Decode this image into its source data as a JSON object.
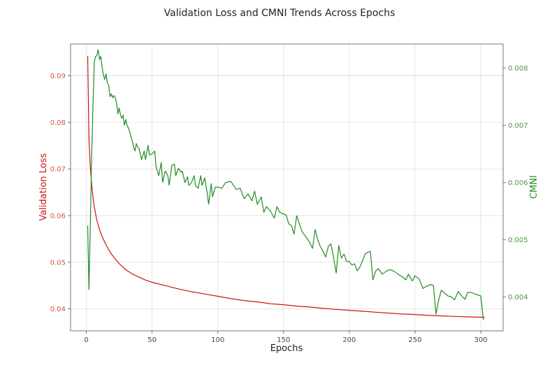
{
  "colors": {
    "loss": "#cc1111",
    "loss_ticks": "#d9534f",
    "cmni": "#228b22",
    "cmni_ticks": "#4a9a3c",
    "grid": "#dddddd",
    "axis": "#555555"
  },
  "chart_data": {
    "type": "line",
    "title": "Validation Loss and CMNI Trends Across Epochs",
    "xlabel": "Epochs",
    "ylabel_left": "Validation Loss",
    "ylabel_right": "CMNI",
    "xlim": [
      -12,
      317
    ],
    "ylim_left": [
      0.0353,
      0.0968
    ],
    "ylim_right": [
      0.00341,
      0.00842
    ],
    "x_ticks": [
      0,
      50,
      100,
      150,
      200,
      250,
      300
    ],
    "y_ticks_left": [
      0.04,
      0.05,
      0.06,
      0.07,
      0.08,
      0.09
    ],
    "y_ticks_right": [
      0.004,
      0.005,
      0.006,
      0.007,
      0.008
    ],
    "x_tick_labels": [
      "0",
      "50",
      "100",
      "150",
      "200",
      "250",
      "300"
    ],
    "y_tick_labels_left": [
      "0.04",
      "0.05",
      "0.06",
      "0.07",
      "0.08",
      "0.09"
    ],
    "y_tick_labels_right": [
      "0.004",
      "0.005",
      "0.006",
      "0.007",
      "0.008"
    ],
    "grid": true,
    "series": [
      {
        "name": "Validation Loss",
        "axis": "left",
        "points": [
          [
            1,
            0.0942
          ],
          [
            2,
            0.0765
          ],
          [
            3,
            0.0705
          ],
          [
            4,
            0.0668
          ],
          [
            5,
            0.064
          ],
          [
            6,
            0.0619
          ],
          [
            8,
            0.059
          ],
          [
            10,
            0.057
          ],
          [
            12,
            0.0555
          ],
          [
            15,
            0.0537
          ],
          [
            18,
            0.0522
          ],
          [
            20,
            0.0514
          ],
          [
            25,
            0.0497
          ],
          [
            30,
            0.0484
          ],
          [
            35,
            0.0475
          ],
          [
            40,
            0.0468
          ],
          [
            45,
            0.0462
          ],
          [
            50,
            0.0457
          ],
          [
            60,
            0.045
          ],
          [
            70,
            0.0443
          ],
          [
            80,
            0.0437
          ],
          [
            90,
            0.0432
          ],
          [
            100,
            0.0427
          ],
          [
            110,
            0.0422
          ],
          [
            120,
            0.0418
          ],
          [
            130,
            0.0415
          ],
          [
            140,
            0.0411
          ],
          [
            150,
            0.0409
          ],
          [
            160,
            0.0406
          ],
          [
            170,
            0.0404
          ],
          [
            180,
            0.0401
          ],
          [
            190,
            0.0399
          ],
          [
            200,
            0.0397
          ],
          [
            210,
            0.0395
          ],
          [
            220,
            0.0393
          ],
          [
            230,
            0.0391
          ],
          [
            240,
            0.0389
          ],
          [
            250,
            0.0388
          ],
          [
            260,
            0.0386
          ],
          [
            270,
            0.0385
          ],
          [
            280,
            0.0384
          ],
          [
            290,
            0.0383
          ],
          [
            303,
            0.0382
          ]
        ]
      },
      {
        "name": "CMNI",
        "axis": "right",
        "points": [
          [
            1,
            0.00525
          ],
          [
            2,
            0.00413
          ],
          [
            3,
            0.00521
          ],
          [
            4,
            0.00642
          ],
          [
            5,
            0.0073
          ],
          [
            6,
            0.0081
          ],
          [
            7,
            0.0082
          ],
          [
            8,
            0.00822
          ],
          [
            9,
            0.00832
          ],
          [
            10,
            0.00815
          ],
          [
            11,
            0.0082
          ],
          [
            12,
            0.008
          ],
          [
            13,
            0.00788
          ],
          [
            14,
            0.0078
          ],
          [
            15,
            0.0079
          ],
          [
            16,
            0.00773
          ],
          [
            17,
            0.0077
          ],
          [
            18,
            0.0075
          ],
          [
            19,
            0.00755
          ],
          [
            20,
            0.00748
          ],
          [
            21,
            0.00752
          ],
          [
            22,
            0.00748
          ],
          [
            23,
            0.00738
          ],
          [
            24,
            0.0072
          ],
          [
            25,
            0.0073
          ],
          [
            26,
            0.00718
          ],
          [
            27,
            0.00712
          ],
          [
            28,
            0.00718
          ],
          [
            29,
            0.007
          ],
          [
            30,
            0.0071
          ],
          [
            31,
            0.007
          ],
          [
            32,
            0.00695
          ],
          [
            33,
            0.00688
          ],
          [
            35,
            0.00672
          ],
          [
            36,
            0.00662
          ],
          [
            37,
            0.00655
          ],
          [
            38,
            0.00668
          ],
          [
            39,
            0.00662
          ],
          [
            40,
            0.0066
          ],
          [
            42,
            0.0064
          ],
          [
            44,
            0.00655
          ],
          [
            45,
            0.0064
          ],
          [
            47,
            0.00665
          ],
          [
            48,
            0.00648
          ],
          [
            50,
            0.0065
          ],
          [
            52,
            0.00655
          ],
          [
            53,
            0.00628
          ],
          [
            55,
            0.00612
          ],
          [
            57,
            0.00635
          ],
          [
            58,
            0.006
          ],
          [
            60,
            0.0062
          ],
          [
            62,
            0.00612
          ],
          [
            63,
            0.00595
          ],
          [
            65,
            0.0063
          ],
          [
            67,
            0.00632
          ],
          [
            68,
            0.00612
          ],
          [
            70,
            0.00625
          ],
          [
            72,
            0.00618
          ],
          [
            73,
            0.0062
          ],
          [
            75,
            0.006
          ],
          [
            77,
            0.0061
          ],
          [
            78,
            0.00595
          ],
          [
            80,
            0.006
          ],
          [
            82,
            0.00612
          ],
          [
            83,
            0.00595
          ],
          [
            85,
            0.0059
          ],
          [
            87,
            0.00612
          ],
          [
            88,
            0.00595
          ],
          [
            90,
            0.00608
          ],
          [
            92,
            0.0058
          ],
          [
            93,
            0.00562
          ],
          [
            95,
            0.00598
          ],
          [
            96,
            0.00575
          ],
          [
            98,
            0.00592
          ],
          [
            100,
            0.00592
          ],
          [
            103,
            0.0059
          ],
          [
            106,
            0.006
          ],
          [
            110,
            0.00602
          ],
          [
            114,
            0.00588
          ],
          [
            117,
            0.0059
          ],
          [
            120,
            0.00572
          ],
          [
            123,
            0.0058
          ],
          [
            126,
            0.00568
          ],
          [
            128,
            0.00585
          ],
          [
            130,
            0.00562
          ],
          [
            133,
            0.00575
          ],
          [
            135,
            0.00548
          ],
          [
            137,
            0.00558
          ],
          [
            140,
            0.0055
          ],
          [
            143,
            0.00538
          ],
          [
            145,
            0.00558
          ],
          [
            147,
            0.00548
          ],
          [
            150,
            0.00545
          ],
          [
            152,
            0.00543
          ],
          [
            154,
            0.00528
          ],
          [
            156,
            0.00525
          ],
          [
            158,
            0.0051
          ],
          [
            160,
            0.00542
          ],
          [
            162,
            0.00528
          ],
          [
            164,
            0.00515
          ],
          [
            166,
            0.00508
          ],
          [
            168,
            0.00502
          ],
          [
            170,
            0.00495
          ],
          [
            172,
            0.00485
          ],
          [
            174,
            0.00518
          ],
          [
            176,
            0.005
          ],
          [
            178,
            0.00488
          ],
          [
            180,
            0.0048
          ],
          [
            182,
            0.0047
          ],
          [
            184,
            0.00488
          ],
          [
            186,
            0.00493
          ],
          [
            188,
            0.0047
          ],
          [
            190,
            0.00442
          ],
          [
            192,
            0.0049
          ],
          [
            194,
            0.00468
          ],
          [
            196,
            0.00475
          ],
          [
            198,
            0.00462
          ],
          [
            200,
            0.00462
          ],
          [
            202,
            0.00456
          ],
          [
            204,
            0.00458
          ],
          [
            206,
            0.00446
          ],
          [
            208,
            0.00452
          ],
          [
            210,
            0.00463
          ],
          [
            212,
            0.00475
          ],
          [
            214,
            0.00478
          ],
          [
            216,
            0.0048
          ],
          [
            218,
            0.0043
          ],
          [
            220,
            0.00445
          ],
          [
            222,
            0.0045
          ],
          [
            225,
            0.0044
          ],
          [
            228,
            0.00445
          ],
          [
            231,
            0.00448
          ],
          [
            234,
            0.00445
          ],
          [
            237,
            0.0044
          ],
          [
            240,
            0.00436
          ],
          [
            243,
            0.0043
          ],
          [
            245,
            0.0044
          ],
          [
            248,
            0.00428
          ],
          [
            250,
            0.00437
          ],
          [
            253,
            0.00432
          ],
          [
            256,
            0.00415
          ],
          [
            258,
            0.00418
          ],
          [
            260,
            0.0042
          ],
          [
            262,
            0.00422
          ],
          [
            264,
            0.0042
          ],
          [
            266,
            0.0037
          ],
          [
            268,
            0.00395
          ],
          [
            270,
            0.00412
          ],
          [
            272,
            0.00408
          ],
          [
            275,
            0.00402
          ],
          [
            278,
            0.004
          ],
          [
            280,
            0.00395
          ],
          [
            283,
            0.0041
          ],
          [
            285,
            0.00403
          ],
          [
            288,
            0.00396
          ],
          [
            290,
            0.00408
          ],
          [
            293,
            0.00408
          ],
          [
            296,
            0.00405
          ],
          [
            300,
            0.00402
          ],
          [
            302,
            0.0036
          ]
        ]
      }
    ]
  }
}
